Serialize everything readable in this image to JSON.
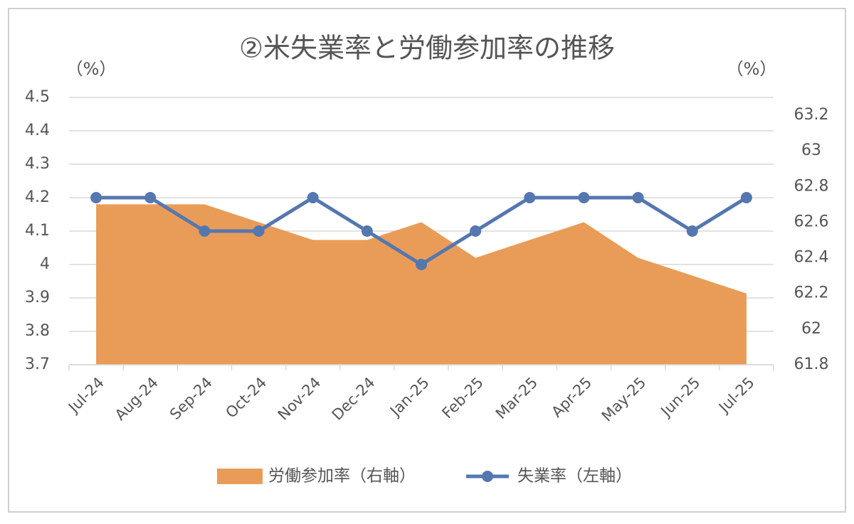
{
  "chart_data": {
    "type": "area_line",
    "title": "②米失業率と労働参加率の推移",
    "y_label": "（%）",
    "y2_label": "（%）",
    "categories": [
      "Jul-24",
      "Aug-24",
      "Sep-24",
      "Oct-24",
      "Nov-24",
      "Dec-24",
      "Jan-25",
      "Feb-25",
      "Mar-25",
      "Apr-25",
      "May-25",
      "Jun-25",
      "Jul-25"
    ],
    "series": [
      {
        "name": "労働参加率（右軸）",
        "color": "#e99c57",
        "kind": "area",
        "axis": "y2",
        "values": [
          62.7,
          62.7,
          62.7,
          62.6,
          62.5,
          62.5,
          62.6,
          62.4,
          62.5,
          62.6,
          62.4,
          62.3,
          62.2
        ]
      },
      {
        "name": "失業率（左軸）",
        "color": "#5577b0",
        "kind": "line",
        "values": [
          4.2,
          4.2,
          4.1,
          4.1,
          4.2,
          4.1,
          4.0,
          4.1,
          4.2,
          4.2,
          4.2,
          4.1,
          4.2
        ]
      }
    ],
    "ylim": [
      3.7,
      4.5
    ],
    "yticks": [
      3.7,
      3.8,
      3.9,
      4,
      4.1,
      4.2,
      4.3,
      4.4,
      4.5
    ],
    "y2lim": [
      61.8,
      63.3
    ],
    "y2ticks": [
      61.8,
      62,
      62.2,
      62.4,
      62.6,
      62.8,
      63,
      63.2
    ],
    "grid": true,
    "legend": "bottom"
  }
}
